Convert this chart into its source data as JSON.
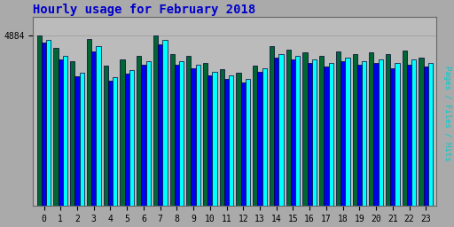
{
  "title": "Hourly usage for February 2018",
  "title_color": "#0000cc",
  "title_fontsize": 10,
  "background_color": "#aaaaaa",
  "plot_bg_color": "#bbbbbb",
  "hours": [
    0,
    1,
    2,
    3,
    4,
    5,
    6,
    7,
    8,
    9,
    10,
    11,
    12,
    13,
    14,
    15,
    16,
    17,
    18,
    19,
    20,
    21,
    22,
    23
  ],
  "hits": [
    4884,
    4520,
    4150,
    4780,
    4020,
    4180,
    4300,
    4884,
    4330,
    4280,
    4100,
    3920,
    3820,
    4020,
    4580,
    4470,
    4390,
    4280,
    4430,
    4330,
    4390,
    4330,
    4440,
    4230
  ],
  "pages": [
    4680,
    4180,
    3720,
    4430,
    3580,
    3780,
    4030,
    4630,
    4030,
    3930,
    3730,
    3630,
    3530,
    3830,
    4230,
    4180,
    4080,
    3980,
    4130,
    4030,
    4080,
    3930,
    4030,
    3980
  ],
  "files": [
    4760,
    4300,
    3820,
    4560,
    3680,
    3880,
    4130,
    4760,
    4130,
    4030,
    3830,
    3730,
    3630,
    3930,
    4330,
    4280,
    4180,
    4080,
    4230,
    4130,
    4180,
    4080,
    4180,
    4080
  ],
  "hits_color": "#006633",
  "pages_color": "#0000ee",
  "files_color": "#00ffff",
  "bar_edge_color": "#000033",
  "bar_edge_width": 0.5,
  "bar_width": 0.28,
  "ylim_max": 5400,
  "ytick_val": 4884,
  "ytick_label": "4884",
  "ylabel": "Pages / Files / Hits",
  "grid_color": "#999999",
  "grid_linewidth": 0.5,
  "xlabel_fontsize": 7,
  "ylabel_fontsize": 7,
  "tick_fontsize": 7
}
